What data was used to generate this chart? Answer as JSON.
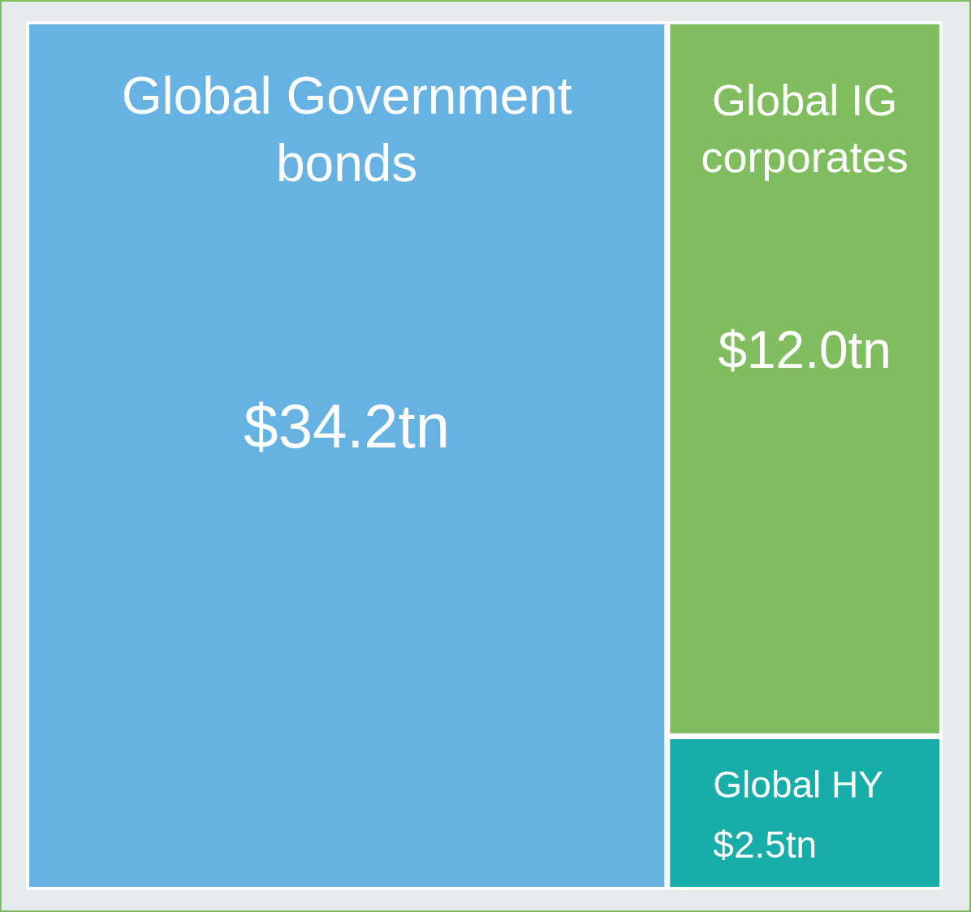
{
  "chart_data": {
    "type": "other",
    "categories": [
      "Global Government bonds",
      "Global IG corporates",
      "Global HY"
    ],
    "values": [
      34.2,
      12.0,
      2.5
    ],
    "value_labels": [
      "$34.2tn",
      "$12.0tn",
      "$2.5tn"
    ],
    "colors": [
      "#66b3e3",
      "#7fbd5f",
      "#17ada9"
    ]
  }
}
